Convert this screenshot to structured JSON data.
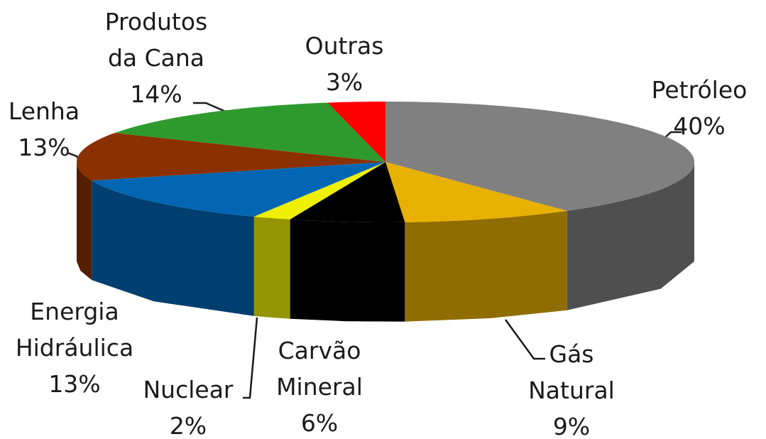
{
  "chart_data": {
    "type": "pie3d",
    "categories": [
      "Petróleo",
      "Gás\nNatural",
      "Carvão\nMineral",
      "Nuclear",
      "Energia\nHidráulica",
      "Lenha",
      "Produtos\nda Cana",
      "Outras"
    ],
    "values": [
      40,
      9,
      6,
      2,
      13,
      13,
      14,
      3
    ],
    "value_labels": [
      "40%",
      "9%",
      "6%",
      "2%",
      "13%",
      "13%",
      "14%",
      "3%"
    ],
    "colors": [
      "#808080",
      "#e8b000",
      "#000000",
      "#eef000",
      "#0066b3",
      "#8b3000",
      "#2e9a2e",
      "#ff0000"
    ]
  }
}
